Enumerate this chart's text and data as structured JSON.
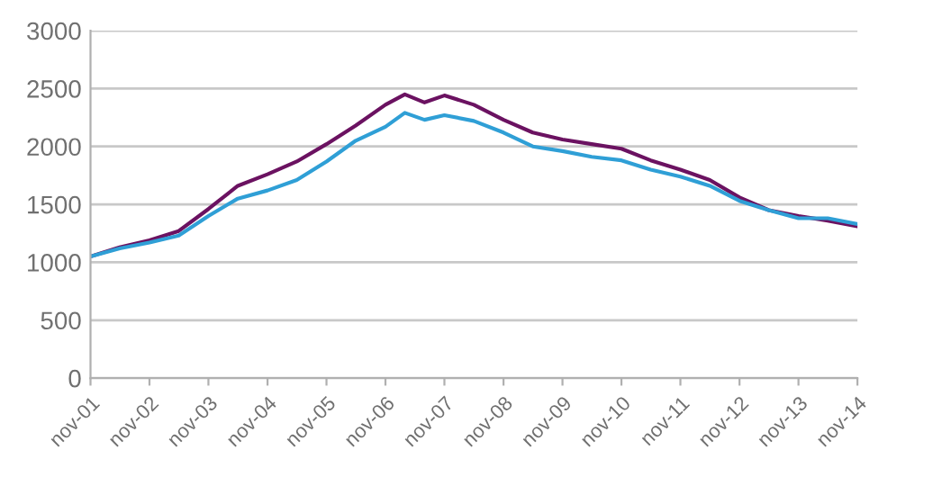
{
  "chart_data": {
    "type": "line",
    "x": [
      "2001-11",
      "2002-05",
      "2002-11",
      "2003-05",
      "2003-11",
      "2004-05",
      "2004-11",
      "2005-05",
      "2005-11",
      "2006-05",
      "2006-11",
      "2007-03",
      "2007-07",
      "2007-11",
      "2008-05",
      "2008-11",
      "2009-05",
      "2009-11",
      "2010-05",
      "2010-11",
      "2011-05",
      "2011-11",
      "2012-05",
      "2012-11",
      "2013-05",
      "2013-11",
      "2014-05",
      "2014-11"
    ],
    "series": [
      {
        "color": "#6b1261",
        "values": [
          1050,
          1130,
          1190,
          1270,
          1460,
          1660,
          1760,
          1870,
          2020,
          2180,
          2360,
          2450,
          2380,
          2440,
          2360,
          2230,
          2120,
          2060,
          2020,
          1980,
          1880,
          1800,
          1710,
          1560,
          1450,
          1400,
          1360,
          1310
        ]
      },
      {
        "color": "#2f9fd6",
        "values": [
          1050,
          1120,
          1170,
          1230,
          1400,
          1550,
          1620,
          1710,
          1870,
          2050,
          2170,
          2290,
          2230,
          2270,
          2220,
          2120,
          2000,
          1960,
          1910,
          1880,
          1800,
          1740,
          1660,
          1530,
          1450,
          1380,
          1380,
          1330
        ]
      }
    ],
    "ylim": [
      0,
      3000
    ],
    "yticks": [
      0,
      500,
      1000,
      1500,
      2000,
      2500,
      3000
    ],
    "xlim": [
      "2001-11",
      "2014-11"
    ],
    "xticks": [
      {
        "value": "2001-11",
        "label": "nov-01"
      },
      {
        "value": "2002-11",
        "label": "nov-02"
      },
      {
        "value": "2003-11",
        "label": "nov-03"
      },
      {
        "value": "2004-11",
        "label": "nov-04"
      },
      {
        "value": "2005-11",
        "label": "nov-05"
      },
      {
        "value": "2006-11",
        "label": "nov-06"
      },
      {
        "value": "2007-11",
        "label": "nov-07"
      },
      {
        "value": "2008-11",
        "label": "nov-08"
      },
      {
        "value": "2009-11",
        "label": "nov-09"
      },
      {
        "value": "2010-11",
        "label": "nov-10"
      },
      {
        "value": "2011-11",
        "label": "nov-11"
      },
      {
        "value": "2012-11",
        "label": "nov-12"
      },
      {
        "value": "2013-11",
        "label": "nov-13"
      },
      {
        "value": "2014-11",
        "label": "nov-14"
      }
    ],
    "grid": "y",
    "legend": false
  }
}
